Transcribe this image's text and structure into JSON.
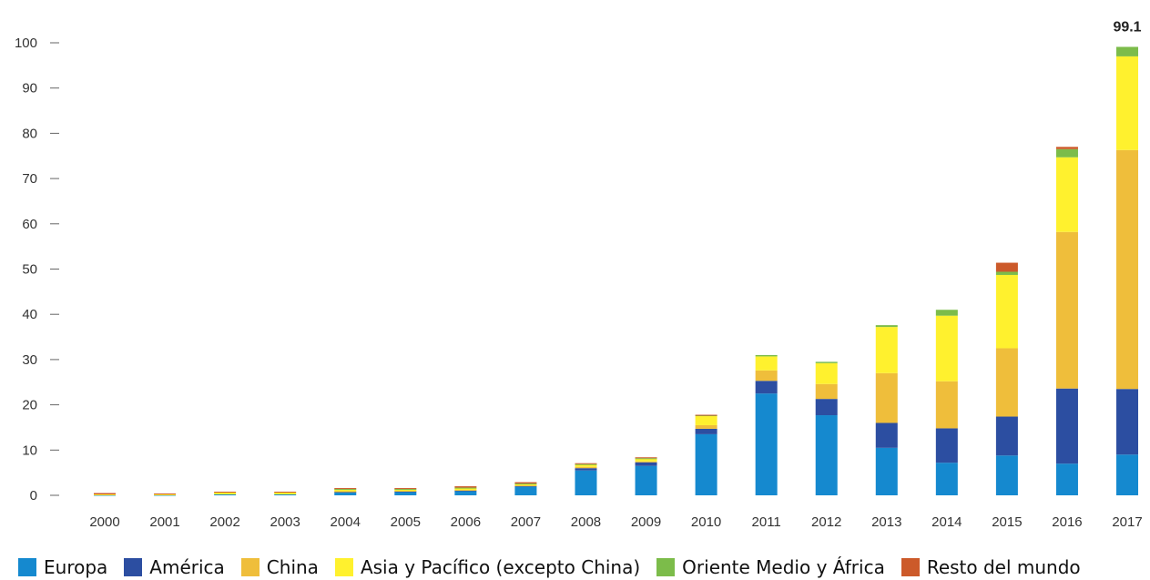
{
  "chart_data": {
    "type": "bar",
    "stacked": true,
    "categories": [
      "2000",
      "2001",
      "2002",
      "2003",
      "2004",
      "2005",
      "2006",
      "2007",
      "2008",
      "2009",
      "2010",
      "2011",
      "2012",
      "2013",
      "2014",
      "2015",
      "2016",
      "2017"
    ],
    "series": [
      {
        "name": "Europa",
        "color": "#1589cf",
        "values": [
          0.1,
          0.1,
          0.2,
          0.2,
          0.6,
          0.7,
          0.9,
          1.9,
          5.5,
          6.5,
          13.5,
          22.5,
          17.7,
          10.5,
          7.2,
          8.8,
          7.0,
          9.0
        ]
      },
      {
        "name": "América",
        "color": "#2c4ea1",
        "values": [
          0.0,
          0.0,
          0.0,
          0.0,
          0.2,
          0.2,
          0.2,
          0.2,
          0.5,
          0.8,
          1.2,
          2.8,
          3.6,
          5.5,
          7.6,
          8.6,
          16.6,
          14.5
        ]
      },
      {
        "name": "China",
        "color": "#efbe3b",
        "values": [
          0.0,
          0.0,
          0.0,
          0.0,
          0.1,
          0.1,
          0.1,
          0.1,
          0.3,
          0.2,
          0.8,
          2.3,
          3.3,
          11.0,
          10.4,
          15.1,
          34.6,
          52.8
        ]
      },
      {
        "name": "Asia y Pacífico (excepto China)",
        "color": "#fff12e",
        "values": [
          0.1,
          0.1,
          0.4,
          0.4,
          0.4,
          0.3,
          0.4,
          0.3,
          0.5,
          0.6,
          2.0,
          3.1,
          4.6,
          10.2,
          14.5,
          16.2,
          16.5,
          20.7
        ]
      },
      {
        "name": "Oriente Medio y África",
        "color": "#7cbc4a",
        "values": [
          0.0,
          0.0,
          0.0,
          0.0,
          0.1,
          0.1,
          0.1,
          0.1,
          0.1,
          0.1,
          0.2,
          0.3,
          0.3,
          0.4,
          1.3,
          0.7,
          1.8,
          2.1
        ]
      },
      {
        "name": "Resto del mundo",
        "color": "#cc5a2a",
        "values": [
          0.3,
          0.2,
          0.2,
          0.2,
          0.2,
          0.2,
          0.3,
          0.3,
          0.2,
          0.2,
          0.1,
          0.0,
          0.0,
          0.0,
          0.0,
          2.0,
          0.5,
          0.0
        ]
      }
    ],
    "annotations": [
      {
        "category": "2017",
        "text": "99.1"
      }
    ],
    "yticks": [
      "0",
      "10",
      "20",
      "30",
      "40",
      "50",
      "60",
      "70",
      "80",
      "90",
      "100"
    ],
    "ylim": [
      0,
      100
    ],
    "title": "",
    "xlabel": "",
    "ylabel": "",
    "grid": false,
    "legend_position": "bottom"
  }
}
